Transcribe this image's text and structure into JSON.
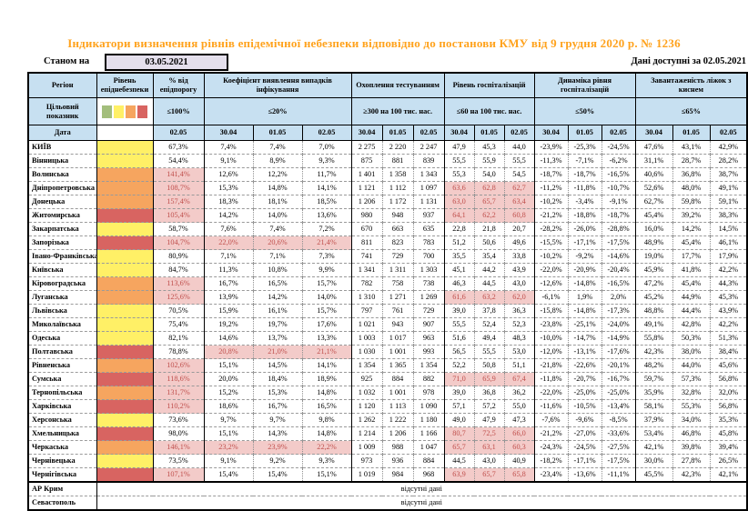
{
  "meta": {
    "title": "Індикатори визначення рівнів епідемічної небезпеки відповідно до постанови КМУ від 9 грудня 2020 р. № 1236",
    "as_of_label": "Станом на",
    "as_of_date": "03.05.2021",
    "available_label": "Дані доступні за 02.05.2021"
  },
  "header": {
    "region": "Регіон",
    "danger_level": "Рівень епіднебезпеки",
    "target_label": "Цільовий показник",
    "date_label": "Дата",
    "groups": [
      {
        "label": "% від епідпорогу",
        "target": "≤100%",
        "dates": [
          "02.05"
        ]
      },
      {
        "label": "Коефіцієнт виявлення випадків інфікування",
        "target": "≤20%",
        "dates": [
          "30.04",
          "01.05",
          "02.05"
        ]
      },
      {
        "label": "Охоплення тестуванням",
        "target": "≥300 на 100 тис. нас.",
        "dates": [
          "30.04",
          "01.05",
          "02.05"
        ]
      },
      {
        "label": "Рівень госпіталізацій",
        "target": "≤60 на 100 тис. нас.",
        "dates": [
          "30.04",
          "01.05",
          "02.05"
        ]
      },
      {
        "label": "Динаміка рівня госпіталізацій",
        "target": "≤50%",
        "dates": [
          "30.04",
          "01.05",
          "02.05"
        ]
      },
      {
        "label": "Завантаженість ліжок з киснем",
        "target": "≤65%",
        "dates": [
          "30.04",
          "01.05",
          "02.05"
        ]
      }
    ]
  },
  "legend_order": [
    "green",
    "yellow",
    "orange",
    "red"
  ],
  "legend_colors": {
    "green": "#A3BE7C",
    "yellow": "#FFF066",
    "orange": "#F6A55F",
    "red": "#D86461"
  },
  "highlight": {
    "bg": "#F3CBC9",
    "text": "#C0504D"
  },
  "no_data_text": "відсутні дані",
  "rows": [
    {
      "region": "КИЇВ",
      "level": "yellow",
      "hl_pct": false,
      "hl_coef": false,
      "hl_hosp": false,
      "values": [
        "67,3%",
        "7,4%",
        "7,4%",
        "7,0%",
        "2 275",
        "2 220",
        "2 247",
        "47,9",
        "45,3",
        "44,0",
        "-23,9%",
        "-25,3%",
        "-24,5%",
        "47,6%",
        "43,1%",
        "42,9%"
      ]
    },
    {
      "region": "Вінницька",
      "level": "yellow",
      "hl_pct": false,
      "hl_coef": false,
      "hl_hosp": false,
      "values": [
        "54,4%",
        "9,1%",
        "8,9%",
        "9,3%",
        "875",
        "881",
        "839",
        "55,5",
        "55,9",
        "55,5",
        "-11,3%",
        "-7,1%",
        "-6,2%",
        "31,1%",
        "28,7%",
        "28,2%"
      ]
    },
    {
      "region": "Волинська",
      "level": "orange",
      "hl_pct": true,
      "hl_coef": false,
      "hl_hosp": false,
      "values": [
        "141,4%",
        "12,6%",
        "12,2%",
        "11,7%",
        "1 401",
        "1 358",
        "1 343",
        "55,3",
        "54,0",
        "54,5",
        "-18,7%",
        "-18,7%",
        "-16,5%",
        "40,6%",
        "36,8%",
        "38,7%"
      ]
    },
    {
      "region": "Дніпропетровська",
      "level": "orange",
      "hl_pct": true,
      "hl_coef": false,
      "hl_hosp": true,
      "values": [
        "108,7%",
        "15,3%",
        "14,8%",
        "14,1%",
        "1 121",
        "1 112",
        "1 097",
        "63,6",
        "62,8",
        "62,7",
        "-11,2%",
        "-11,8%",
        "-10,7%",
        "52,6%",
        "48,0%",
        "49,1%"
      ]
    },
    {
      "region": "Донецька",
      "level": "orange",
      "hl_pct": true,
      "hl_coef": false,
      "hl_hosp": true,
      "values": [
        "157,4%",
        "18,3%",
        "18,1%",
        "18,5%",
        "1 206",
        "1 172",
        "1 131",
        "63,0",
        "65,7",
        "63,4",
        "-10,2%",
        "-3,4%",
        "-9,1%",
        "62,7%",
        "59,8%",
        "59,1%"
      ]
    },
    {
      "region": "Житомирська",
      "level": "red",
      "hl_pct": true,
      "hl_coef": false,
      "hl_hosp": true,
      "values": [
        "105,4%",
        "14,2%",
        "14,0%",
        "13,6%",
        "980",
        "948",
        "937",
        "64,1",
        "62,2",
        "60,8",
        "-21,2%",
        "-18,8%",
        "-18,7%",
        "45,4%",
        "39,2%",
        "38,3%"
      ]
    },
    {
      "region": "Закарпатська",
      "level": "yellow",
      "hl_pct": false,
      "hl_coef": false,
      "hl_hosp": false,
      "values": [
        "58,7%",
        "7,6%",
        "7,4%",
        "7,2%",
        "670",
        "663",
        "635",
        "22,8",
        "21,8",
        "20,7",
        "-28,2%",
        "-26,0%",
        "-28,8%",
        "16,0%",
        "14,2%",
        "14,5%"
      ]
    },
    {
      "region": "Запорізька",
      "level": "red",
      "hl_pct": true,
      "hl_coef": true,
      "hl_hosp": false,
      "values": [
        "104,7%",
        "22,0%",
        "20,6%",
        "21,4%",
        "811",
        "823",
        "783",
        "51,2",
        "50,6",
        "49,6",
        "-15,5%",
        "-17,1%",
        "-17,5%",
        "48,9%",
        "45,4%",
        "46,1%"
      ]
    },
    {
      "region": "Івано-Франківська",
      "level": "yellow",
      "hl_pct": false,
      "hl_coef": false,
      "hl_hosp": false,
      "values": [
        "80,9%",
        "7,1%",
        "7,1%",
        "7,3%",
        "741",
        "729",
        "700",
        "35,5",
        "35,4",
        "33,8",
        "-10,2%",
        "-9,2%",
        "-14,6%",
        "19,0%",
        "17,7%",
        "17,9%"
      ]
    },
    {
      "region": "Київська",
      "level": "yellow",
      "hl_pct": false,
      "hl_coef": false,
      "hl_hosp": false,
      "values": [
        "84,7%",
        "11,3%",
        "10,8%",
        "9,9%",
        "1 341",
        "1 311",
        "1 303",
        "45,1",
        "44,2",
        "43,9",
        "-22,0%",
        "-20,9%",
        "-20,4%",
        "45,9%",
        "41,8%",
        "42,2%"
      ]
    },
    {
      "region": "Кіровоградська",
      "level": "orange",
      "hl_pct": true,
      "hl_coef": false,
      "hl_hosp": false,
      "values": [
        "113,6%",
        "16,7%",
        "16,5%",
        "15,7%",
        "782",
        "758",
        "738",
        "46,3",
        "44,5",
        "43,0",
        "-12,6%",
        "-14,8%",
        "-16,5%",
        "47,2%",
        "45,4%",
        "44,3%"
      ]
    },
    {
      "region": "Луганська",
      "level": "orange",
      "hl_pct": true,
      "hl_coef": false,
      "hl_hosp": true,
      "values": [
        "125,6%",
        "13,9%",
        "14,2%",
        "14,0%",
        "1 310",
        "1 271",
        "1 269",
        "61,6",
        "63,2",
        "62,0",
        "-6,1%",
        "1,9%",
        "2,0%",
        "45,2%",
        "44,9%",
        "45,3%"
      ]
    },
    {
      "region": "Львівська",
      "level": "yellow",
      "hl_pct": false,
      "hl_coef": false,
      "hl_hosp": false,
      "values": [
        "70,5%",
        "15,9%",
        "16,1%",
        "15,7%",
        "797",
        "761",
        "729",
        "39,0",
        "37,8",
        "36,3",
        "-15,8%",
        "-14,8%",
        "-17,3%",
        "48,8%",
        "44,4%",
        "43,9%"
      ]
    },
    {
      "region": "Миколаївська",
      "level": "yellow",
      "hl_pct": false,
      "hl_coef": false,
      "hl_hosp": false,
      "values": [
        "75,4%",
        "19,2%",
        "19,7%",
        "17,6%",
        "1 021",
        "943",
        "907",
        "55,5",
        "52,4",
        "52,3",
        "-23,8%",
        "-25,1%",
        "-24,0%",
        "49,1%",
        "42,8%",
        "42,2%"
      ]
    },
    {
      "region": "Одеська",
      "level": "yellow",
      "hl_pct": false,
      "hl_coef": false,
      "hl_hosp": false,
      "values": [
        "82,1%",
        "14,6%",
        "13,7%",
        "13,3%",
        "1 003",
        "1 017",
        "963",
        "51,6",
        "49,4",
        "48,3",
        "-10,0%",
        "-14,7%",
        "-14,9%",
        "55,8%",
        "50,3%",
        "51,3%"
      ]
    },
    {
      "region": "Полтавська",
      "level": "red",
      "hl_pct": false,
      "hl_coef": true,
      "hl_hosp": false,
      "values": [
        "78,8%",
        "20,8%",
        "21,0%",
        "21,1%",
        "1 030",
        "1 001",
        "993",
        "56,5",
        "55,5",
        "53,0",
        "-12,0%",
        "-13,1%",
        "-17,6%",
        "42,3%",
        "38,0%",
        "38,4%"
      ]
    },
    {
      "region": "Рівненська",
      "level": "orange",
      "hl_pct": true,
      "hl_coef": false,
      "hl_hosp": false,
      "values": [
        "102,6%",
        "15,1%",
        "14,5%",
        "14,1%",
        "1 354",
        "1 365",
        "1 354",
        "52,2",
        "50,8",
        "51,1",
        "-21,8%",
        "-22,6%",
        "-20,1%",
        "48,2%",
        "44,0%",
        "45,6%"
      ]
    },
    {
      "region": "Сумська",
      "level": "red",
      "hl_pct": true,
      "hl_coef": false,
      "hl_hosp": true,
      "values": [
        "118,6%",
        "20,0%",
        "18,4%",
        "18,9%",
        "925",
        "884",
        "882",
        "71,0",
        "65,9",
        "67,4",
        "-11,8%",
        "-20,7%",
        "-16,7%",
        "59,7%",
        "57,3%",
        "56,8%"
      ]
    },
    {
      "region": "Тернопільська",
      "level": "orange",
      "hl_pct": true,
      "hl_coef": false,
      "hl_hosp": false,
      "values": [
        "131,7%",
        "15,2%",
        "15,3%",
        "14,8%",
        "1 032",
        "1 001",
        "978",
        "39,0",
        "36,8",
        "36,2",
        "-22,0%",
        "-25,0%",
        "-25,0%",
        "35,9%",
        "32,8%",
        "32,0%"
      ]
    },
    {
      "region": "Харківська",
      "level": "red",
      "hl_pct": true,
      "hl_coef": false,
      "hl_hosp": false,
      "values": [
        "110,2%",
        "18,6%",
        "16,7%",
        "16,5%",
        "1 120",
        "1 113",
        "1 090",
        "57,1",
        "57,2",
        "55,0",
        "-11,6%",
        "-10,5%",
        "-13,4%",
        "58,1%",
        "55,3%",
        "56,8%"
      ]
    },
    {
      "region": "Херсонська",
      "level": "yellow",
      "hl_pct": false,
      "hl_coef": false,
      "hl_hosp": false,
      "values": [
        "73,6%",
        "9,7%",
        "9,7%",
        "9,8%",
        "1 262",
        "1 222",
        "1 180",
        "49,0",
        "47,9",
        "47,3",
        "-7,6%",
        "-9,6%",
        "-8,5%",
        "37,9%",
        "34,0%",
        "35,3%"
      ]
    },
    {
      "region": "Хмельницька",
      "level": "red",
      "hl_pct": false,
      "hl_coef": false,
      "hl_hosp": true,
      "values": [
        "98,0%",
        "15,1%",
        "14,3%",
        "14,8%",
        "1 214",
        "1 206",
        "1 166",
        "80,7",
        "72,5",
        "66,0",
        "-21,2%",
        "-27,0%",
        "-33,6%",
        "53,4%",
        "46,8%",
        "45,8%"
      ]
    },
    {
      "region": "Черкаська",
      "level": "orange",
      "hl_pct": true,
      "hl_coef": true,
      "hl_hosp": true,
      "values": [
        "146,1%",
        "23,2%",
        "23,9%",
        "22,2%",
        "1 009",
        "988",
        "1 047",
        "65,7",
        "63,1",
        "60,3",
        "-24,3%",
        "-24,5%",
        "-27,5%",
        "42,1%",
        "39,8%",
        "39,4%"
      ]
    },
    {
      "region": "Чернівецька",
      "level": "yellow",
      "hl_pct": false,
      "hl_coef": false,
      "hl_hosp": false,
      "values": [
        "73,5%",
        "9,1%",
        "9,2%",
        "9,3%",
        "973",
        "936",
        "884",
        "44,5",
        "43,0",
        "40,9",
        "-18,2%",
        "-17,1%",
        "-17,5%",
        "30,0%",
        "27,8%",
        "26,5%"
      ]
    },
    {
      "region": "Чернігівська",
      "level": "red",
      "hl_pct": true,
      "hl_coef": false,
      "hl_hosp": true,
      "values": [
        "107,1%",
        "15,4%",
        "15,4%",
        "15,1%",
        "1 019",
        "984",
        "968",
        "63,9",
        "65,7",
        "65,8",
        "-23,4%",
        "-13,6%",
        "-11,1%",
        "45,5%",
        "42,3%",
        "42,1%"
      ]
    }
  ],
  "no_data_rows": [
    "АР Крим",
    "Севастополь"
  ]
}
